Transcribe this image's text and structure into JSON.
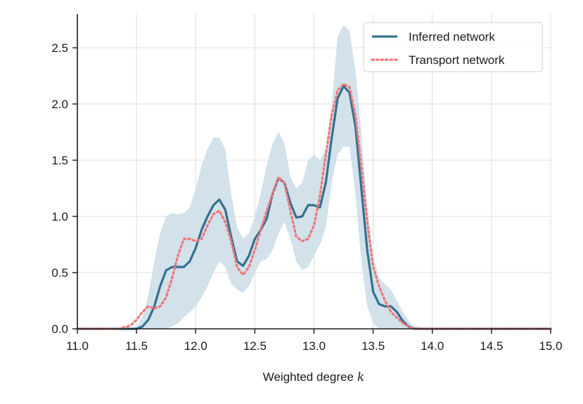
{
  "chart_data": {
    "type": "line",
    "xlabel": "Weighted degree",
    "xlabel_var": "k",
    "ylabel": "",
    "xlim": [
      11.0,
      15.0
    ],
    "ylim": [
      0.0,
      2.8
    ],
    "x_ticks": [
      "11.0",
      "11.5",
      "12.0",
      "12.5",
      "13.0",
      "13.5",
      "14.0",
      "14.5",
      "15.0"
    ],
    "y_ticks": [
      "0.0",
      "0.5",
      "1.0",
      "1.5",
      "2.0",
      "2.5"
    ],
    "grid": true,
    "legend_position": "top-right",
    "band_color": "#d2e1ea",
    "series": [
      {
        "name": "Inferred network",
        "color": "#34708f",
        "style": "solid",
        "x": [
          11.0,
          11.3,
          11.45,
          11.5,
          11.55,
          11.6,
          11.65,
          11.7,
          11.75,
          11.8,
          11.85,
          11.9,
          11.95,
          12.0,
          12.05,
          12.1,
          12.15,
          12.2,
          12.25,
          12.3,
          12.35,
          12.4,
          12.45,
          12.5,
          12.55,
          12.6,
          12.65,
          12.7,
          12.75,
          12.8,
          12.85,
          12.9,
          12.95,
          13.0,
          13.05,
          13.1,
          13.15,
          13.2,
          13.25,
          13.3,
          13.35,
          13.4,
          13.45,
          13.5,
          13.55,
          13.6,
          13.65,
          13.7,
          13.75,
          13.8,
          13.85,
          14.0,
          15.0
        ],
        "y": [
          0.0,
          0.0,
          0.0,
          0.0,
          0.02,
          0.08,
          0.2,
          0.38,
          0.52,
          0.55,
          0.55,
          0.55,
          0.6,
          0.72,
          0.88,
          1.0,
          1.1,
          1.15,
          1.06,
          0.82,
          0.6,
          0.56,
          0.65,
          0.8,
          0.88,
          0.98,
          1.2,
          1.34,
          1.3,
          1.12,
          0.99,
          1.0,
          1.1,
          1.1,
          1.08,
          1.3,
          1.7,
          2.05,
          2.16,
          2.1,
          1.8,
          1.25,
          0.7,
          0.33,
          0.22,
          0.2,
          0.2,
          0.15,
          0.07,
          0.02,
          0.0,
          0.0,
          0.0
        ]
      },
      {
        "name": "Transport network",
        "color": "#ee7777",
        "style": "dotted",
        "x": [
          11.0,
          11.35,
          11.45,
          11.5,
          11.55,
          11.6,
          11.65,
          11.7,
          11.75,
          11.8,
          11.85,
          11.9,
          11.95,
          12.0,
          12.05,
          12.1,
          12.15,
          12.2,
          12.25,
          12.3,
          12.35,
          12.4,
          12.45,
          12.5,
          12.55,
          12.6,
          12.65,
          12.7,
          12.75,
          12.8,
          12.85,
          12.9,
          12.95,
          13.0,
          13.05,
          13.1,
          13.15,
          13.2,
          13.25,
          13.3,
          13.35,
          13.4,
          13.45,
          13.5,
          13.55,
          13.6,
          13.65,
          13.7,
          13.75,
          13.8,
          13.85,
          14.0,
          15.0
        ],
        "y": [
          0.0,
          0.0,
          0.03,
          0.08,
          0.15,
          0.2,
          0.18,
          0.2,
          0.28,
          0.45,
          0.65,
          0.8,
          0.8,
          0.78,
          0.8,
          0.92,
          1.02,
          1.05,
          0.95,
          0.78,
          0.55,
          0.48,
          0.55,
          0.7,
          0.88,
          1.05,
          1.2,
          1.35,
          1.3,
          1.05,
          0.82,
          0.78,
          0.8,
          0.92,
          1.18,
          1.55,
          1.9,
          2.12,
          2.18,
          2.15,
          1.9,
          1.45,
          0.95,
          0.55,
          0.38,
          0.25,
          0.15,
          0.1,
          0.05,
          0.02,
          0.0,
          0.0,
          0.0
        ]
      }
    ],
    "band": {
      "x": [
        11.0,
        11.45,
        11.5,
        11.55,
        11.6,
        11.65,
        11.7,
        11.75,
        11.8,
        11.85,
        11.9,
        11.95,
        12.0,
        12.05,
        12.1,
        12.15,
        12.2,
        12.25,
        12.3,
        12.35,
        12.4,
        12.45,
        12.5,
        12.55,
        12.6,
        12.65,
        12.7,
        12.75,
        12.8,
        12.85,
        12.9,
        12.95,
        13.0,
        13.05,
        13.1,
        13.15,
        13.2,
        13.25,
        13.3,
        13.35,
        13.4,
        13.45,
        13.5,
        13.55,
        13.6,
        13.65,
        13.7,
        13.75,
        13.8,
        13.85,
        14.0,
        15.0
      ],
      "upper": [
        0.0,
        0.0,
        0.02,
        0.1,
        0.3,
        0.6,
        0.85,
        1.0,
        1.03,
        1.02,
        1.03,
        1.08,
        1.25,
        1.45,
        1.6,
        1.7,
        1.7,
        1.6,
        1.2,
        0.9,
        0.8,
        0.85,
        1.0,
        1.2,
        1.45,
        1.65,
        1.75,
        1.65,
        1.35,
        1.25,
        1.3,
        1.5,
        1.55,
        1.5,
        1.6,
        2.0,
        2.6,
        2.7,
        2.65,
        2.3,
        1.75,
        1.1,
        0.65,
        0.45,
        0.4,
        0.35,
        0.25,
        0.15,
        0.07,
        0.02,
        0.0,
        0.0
      ],
      "lower": [
        0.0,
        0.0,
        0.0,
        0.0,
        0.0,
        0.0,
        0.0,
        0.0,
        0.02,
        0.05,
        0.1,
        0.15,
        0.2,
        0.28,
        0.38,
        0.5,
        0.6,
        0.55,
        0.4,
        0.35,
        0.32,
        0.38,
        0.5,
        0.6,
        0.62,
        0.7,
        0.85,
        0.95,
        0.8,
        0.6,
        0.52,
        0.55,
        0.65,
        0.75,
        0.9,
        1.3,
        1.55,
        1.62,
        1.62,
        1.2,
        0.6,
        0.2,
        0.05,
        0.0,
        0.0,
        0.0,
        0.0,
        0.0,
        0.0,
        0.0,
        0.0,
        0.0
      ]
    }
  }
}
